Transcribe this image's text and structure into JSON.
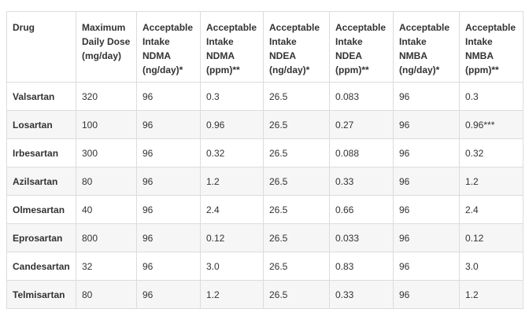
{
  "table": {
    "headers": [
      "Drug",
      "Maximum Daily Dose (mg/day)",
      "Acceptable Intake NDMA (ng/day)*",
      "Acceptable Intake NDMA (ppm)**",
      "Acceptable Intake NDEA (ng/day)*",
      "Acceptable Intake NDEA (ppm)**",
      "Acceptable Intake NMBA (ng/day)*",
      "Acceptable Intake NMBA (ppm)**"
    ],
    "rows": [
      [
        "Valsartan",
        "320",
        "96",
        "0.3",
        "26.5",
        "0.083",
        "96",
        "0.3"
      ],
      [
        "Losartan",
        "100",
        "96",
        "0.96",
        "26.5",
        "0.27",
        "96",
        "0.96***"
      ],
      [
        "Irbesartan",
        "300",
        "96",
        "0.32",
        "26.5",
        "0.088",
        "96",
        "0.32"
      ],
      [
        "Azilsartan",
        "80",
        "96",
        "1.2",
        "26.5",
        "0.33",
        "96",
        "1.2"
      ],
      [
        "Olmesartan",
        "40",
        "96",
        "2.4",
        "26.5",
        "0.66",
        "96",
        "2.4"
      ],
      [
        "Eprosartan",
        "800",
        "96",
        "0.12",
        "26.5",
        "0.033",
        "96",
        "0.12"
      ],
      [
        "Candesartan",
        "32",
        "96",
        "3.0",
        "26.5",
        "0.83",
        "96",
        "3.0"
      ],
      [
        "Telmisartan",
        "80",
        "96",
        "1.2",
        "26.5",
        "0.33",
        "96",
        "1.2"
      ]
    ]
  }
}
